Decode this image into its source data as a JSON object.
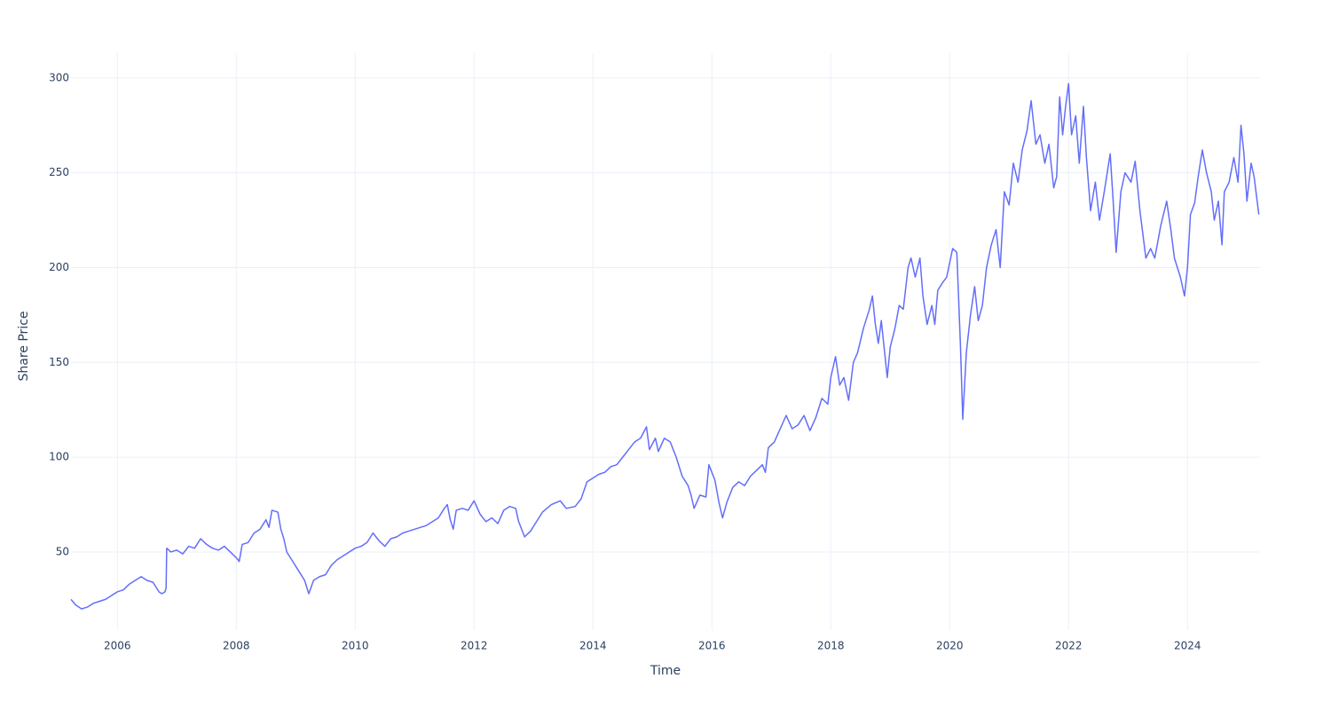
{
  "chart_data": {
    "type": "line",
    "x_label": "Time",
    "y_label": "Share Price",
    "color": "#636efa",
    "grid": true,
    "xlim": [
      2005.22,
      2025.22
    ],
    "xticks": [
      2006,
      2008,
      2010,
      2012,
      2014,
      2016,
      2018,
      2020,
      2022,
      2024
    ],
    "ylim": [
      8.8,
      313
    ],
    "yticks": [
      50,
      100,
      150,
      200,
      250,
      300
    ],
    "x": [
      2005.22,
      2005.3,
      2005.4,
      2005.5,
      2005.6,
      2005.7,
      2005.8,
      2005.9,
      2006.0,
      2006.1,
      2006.2,
      2006.3,
      2006.4,
      2006.5,
      2006.6,
      2006.7,
      2006.75,
      2006.8,
      2006.82,
      2006.83,
      2006.9,
      2007.0,
      2007.1,
      2007.2,
      2007.3,
      2007.4,
      2007.5,
      2007.6,
      2007.7,
      2007.8,
      2007.9,
      2008.0,
      2008.05,
      2008.1,
      2008.2,
      2008.3,
      2008.4,
      2008.5,
      2008.55,
      2008.6,
      2008.7,
      2008.75,
      2008.8,
      2008.85,
      2008.95,
      2009.05,
      2009.15,
      2009.22,
      2009.3,
      2009.4,
      2009.5,
      2009.6,
      2009.7,
      2009.8,
      2009.9,
      2010.0,
      2010.1,
      2010.2,
      2010.3,
      2010.4,
      2010.5,
      2010.6,
      2010.7,
      2010.8,
      2010.9,
      2011.0,
      2011.1,
      2011.2,
      2011.3,
      2011.4,
      2011.5,
      2011.55,
      2011.6,
      2011.65,
      2011.7,
      2011.8,
      2011.9,
      2012.0,
      2012.1,
      2012.2,
      2012.3,
      2012.4,
      2012.5,
      2012.6,
      2012.7,
      2012.75,
      2012.85,
      2012.95,
      2013.05,
      2013.15,
      2013.3,
      2013.45,
      2013.55,
      2013.7,
      2013.8,
      2013.9,
      2014.0,
      2014.1,
      2014.2,
      2014.3,
      2014.4,
      2014.5,
      2014.6,
      2014.7,
      2014.8,
      2014.9,
      2014.95,
      2015.05,
      2015.1,
      2015.2,
      2015.3,
      2015.4,
      2015.5,
      2015.6,
      2015.65,
      2015.7,
      2015.8,
      2015.9,
      2015.95,
      2016.05,
      2016.12,
      2016.18,
      2016.25,
      2016.35,
      2016.45,
      2016.55,
      2016.65,
      2016.75,
      2016.85,
      2016.9,
      2016.95,
      2017.05,
      2017.15,
      2017.25,
      2017.35,
      2017.45,
      2017.55,
      2017.65,
      2017.75,
      2017.85,
      2017.95,
      2018.0,
      2018.08,
      2018.15,
      2018.22,
      2018.3,
      2018.38,
      2018.45,
      2018.55,
      2018.65,
      2018.7,
      2018.75,
      2018.8,
      2018.85,
      2018.95,
      2019.0,
      2019.08,
      2019.15,
      2019.22,
      2019.3,
      2019.35,
      2019.42,
      2019.5,
      2019.55,
      2019.62,
      2019.7,
      2019.75,
      2019.8,
      2019.88,
      2019.95,
      2020.05,
      2020.12,
      2020.18,
      2020.22,
      2020.28,
      2020.35,
      2020.42,
      2020.48,
      2020.55,
      2020.62,
      2020.7,
      2020.78,
      2020.85,
      2020.92,
      2021.0,
      2021.07,
      2021.15,
      2021.22,
      2021.3,
      2021.37,
      2021.45,
      2021.52,
      2021.6,
      2021.67,
      2021.75,
      2021.8,
      2021.85,
      2021.9,
      2021.95,
      2022.0,
      2022.05,
      2022.12,
      2022.18,
      2022.25,
      2022.3,
      2022.37,
      2022.45,
      2022.52,
      2022.6,
      2022.7,
      2022.75,
      2022.8,
      2022.88,
      2022.95,
      2023.05,
      2023.12,
      2023.2,
      2023.3,
      2023.38,
      2023.45,
      2023.55,
      2023.65,
      2023.72,
      2023.78,
      2023.88,
      2023.95,
      2024.0,
      2024.05,
      2024.12,
      2024.18,
      2024.25,
      2024.32,
      2024.4,
      2024.45,
      2024.52,
      2024.58,
      2024.62,
      2024.7,
      2024.78,
      2024.85,
      2024.9,
      2024.95,
      2025.0,
      2025.07,
      2025.12,
      2025.2
    ],
    "values": [
      25,
      22,
      20,
      21,
      23,
      24,
      25,
      27,
      29,
      30,
      33,
      35,
      37,
      35,
      34,
      29,
      28,
      29,
      31,
      52,
      50,
      51,
      49,
      53,
      52,
      57,
      54,
      52,
      51,
      53,
      50,
      47,
      45,
      54,
      55,
      60,
      62,
      67,
      63,
      72,
      71,
      62,
      57,
      50,
      45,
      40,
      35,
      28,
      35,
      37,
      38,
      43,
      46,
      48,
      50,
      52,
      53,
      55,
      60,
      56,
      53,
      57,
      58,
      60,
      61,
      62,
      63,
      64,
      66,
      68,
      73,
      75,
      67,
      62,
      72,
      73,
      72,
      77,
      70,
      66,
      68,
      65,
      72,
      74,
      73,
      66,
      58,
      61,
      66,
      71,
      75,
      77,
      73,
      74,
      78,
      87,
      89,
      91,
      92,
      95,
      96,
      100,
      104,
      108,
      110,
      116,
      104,
      110,
      103,
      110,
      108,
      100,
      90,
      85,
      80,
      73,
      80,
      79,
      96,
      88,
      76,
      68,
      76,
      84,
      87,
      85,
      90,
      93,
      96,
      92,
      105,
      108,
      115,
      122,
      115,
      117,
      122,
      114,
      121,
      131,
      128,
      142,
      153,
      138,
      142,
      130,
      150,
      155,
      168,
      178,
      185,
      170,
      160,
      172,
      142,
      158,
      168,
      180,
      178,
      200,
      205,
      195,
      205,
      185,
      170,
      180,
      170,
      188,
      192,
      195,
      210,
      208,
      160,
      120,
      155,
      175,
      190,
      172,
      180,
      200,
      212,
      220,
      200,
      240,
      233,
      255,
      245,
      262,
      272,
      288,
      265,
      270,
      255,
      265,
      242,
      248,
      290,
      270,
      285,
      297,
      270,
      280,
      255,
      285,
      258,
      230,
      245,
      225,
      240,
      260,
      235,
      208,
      240,
      250,
      245,
      256,
      230,
      205,
      210,
      205,
      222,
      235,
      220,
      205,
      195,
      185,
      200,
      228,
      234,
      248,
      262,
      250,
      240,
      225,
      235,
      212,
      240,
      245,
      258,
      245,
      275,
      260,
      235,
      255,
      248,
      228
    ]
  }
}
